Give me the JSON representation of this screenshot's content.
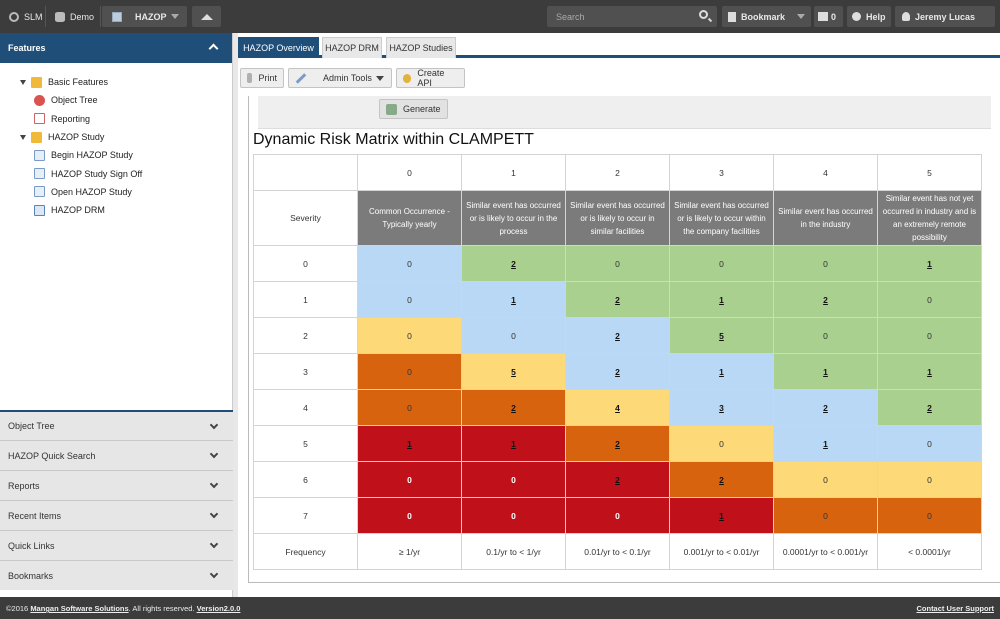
{
  "topbar": {
    "slm": "SLM",
    "demo": "Demo",
    "hazop": "HAZOP",
    "search_placeholder": "Search",
    "bookmark": "Bookmark",
    "notifications": "0",
    "help": "Help",
    "user": "Jeremy Lucas"
  },
  "sidebar": {
    "features_title": "Features",
    "tree": [
      {
        "label": "Basic Features"
      },
      {
        "label": "Object Tree"
      },
      {
        "label": "Reporting"
      },
      {
        "label": "HAZOP Study"
      },
      {
        "label": "Begin HAZOP Study"
      },
      {
        "label": "HAZOP Study Sign Off"
      },
      {
        "label": "Open HAZOP Study"
      },
      {
        "label": "HAZOP DRM"
      }
    ],
    "accordions": [
      {
        "label": "Object Tree"
      },
      {
        "label": "HAZOP Quick Search"
      },
      {
        "label": "Reports"
      },
      {
        "label": "Recent Items"
      },
      {
        "label": "Quick Links"
      },
      {
        "label": "Bookmarks"
      }
    ]
  },
  "tabs": [
    {
      "label": "HAZOP Overview"
    },
    {
      "label": "HAZOP DRM"
    },
    {
      "label": "HAZOP Studies"
    }
  ],
  "toolbar": {
    "print": "Print",
    "admin_tools": "Admin Tools",
    "create_api": "Create API",
    "generate": "Generate"
  },
  "matrix": {
    "title": "Dynamic Risk Matrix within CLAMPETT",
    "severity_label": "Severity",
    "frequency_label": "Frequency",
    "columns": [
      "0",
      "1",
      "2",
      "3",
      "4",
      "5"
    ],
    "likelihoods": [
      "Common Occurrence - Typically yearly",
      "Similar event has occurred or is likely to occur in the process",
      "Similar event has occurred or is likely to occur in similar facilities",
      "Similar event has occurred or is likely to occur within the company facilities",
      "Similar event has occurred in the industry",
      "Similar event has not yet occurred in industry and is an extremely remote possibility"
    ],
    "rows": [
      {
        "severity": "0",
        "cells": [
          "0",
          "2",
          "0",
          "0",
          "0",
          "1"
        ]
      },
      {
        "severity": "1",
        "cells": [
          "0",
          "1",
          "2",
          "1",
          "2",
          "0"
        ]
      },
      {
        "severity": "2",
        "cells": [
          "0",
          "0",
          "2",
          "5",
          "0",
          "0"
        ]
      },
      {
        "severity": "3",
        "cells": [
          "0",
          "5",
          "2",
          "1",
          "1",
          "1"
        ]
      },
      {
        "severity": "4",
        "cells": [
          "0",
          "2",
          "4",
          "3",
          "2",
          "2"
        ]
      },
      {
        "severity": "5",
        "cells": [
          "1",
          "1",
          "2",
          "0",
          "1",
          "0"
        ]
      },
      {
        "severity": "6",
        "cells": [
          "0",
          "0",
          "2",
          "2",
          "0",
          "0"
        ]
      },
      {
        "severity": "7",
        "cells": [
          "0",
          "0",
          "0",
          "1",
          "0",
          "0"
        ]
      }
    ],
    "frequencies": [
      "≥ 1/yr",
      "0.1/yr to < 1/yr",
      "0.01/yr to < 0.1/yr",
      "0.001/yr to < 0.01/yr",
      "0.0001/yr to < 0.001/yr",
      "< 0.0001/yr"
    ]
  },
  "footer": {
    "copyright": "©2016",
    "company": "Mangan Software Solutions",
    "rights": ". All rights reserved.",
    "version": "Version2.0.0",
    "support": "Contact User Support"
  }
}
